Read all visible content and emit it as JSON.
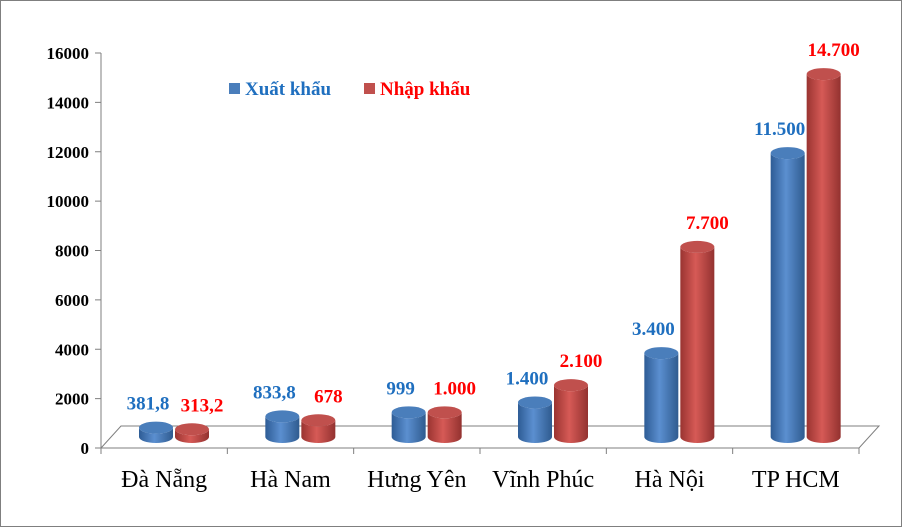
{
  "chart_data": {
    "type": "bar",
    "categories": [
      "Đà Nẵng",
      "Hà Nam",
      "Hưng Yên",
      "Vĩnh Phúc",
      "Hà Nội",
      "TP HCM"
    ],
    "series": [
      {
        "name": "Xuất khẩu",
        "color": "#4a7ebb",
        "values": [
          381.8,
          833.8,
          999,
          1400,
          3400,
          11500
        ],
        "labels": [
          "381,8",
          "833,8",
          "999",
          "1.400",
          "3.400",
          "11.500"
        ],
        "label_color": "#1f6fbf"
      },
      {
        "name": "Nhập khẩu",
        "color": "#c0504d",
        "values": [
          313.2,
          678,
          1000,
          2100,
          7700,
          14700
        ],
        "labels": [
          "313,2",
          "678",
          "1.000",
          "2.100",
          "7.700",
          "14.700"
        ],
        "label_color": "#ff0000"
      }
    ],
    "yticks": [
      "0",
      "2000",
      "4000",
      "6000",
      "8000",
      "10000",
      "12000",
      "14000",
      "16000"
    ],
    "ylim": [
      0,
      16000
    ],
    "grid": false,
    "legend_position": "top-left"
  }
}
